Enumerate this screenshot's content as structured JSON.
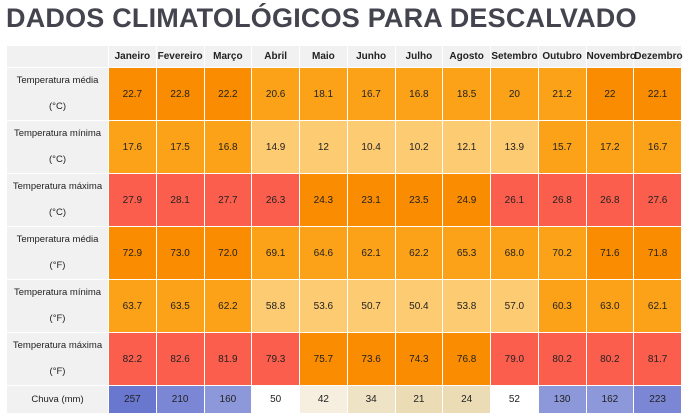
{
  "title": "DADOS CLIMATOLÓGICOS PARA DESCALVADO",
  "months": [
    "Janeiro",
    "Fevereiro",
    "Março",
    "Abril",
    "Maio",
    "Junho",
    "Julho",
    "Agosto",
    "Setembro",
    "Outubro",
    "Novembro",
    "Dezembro"
  ],
  "rows": [
    {
      "label_l1": "Temperatura média",
      "label_l2": "(°C)",
      "values": [
        "22.7",
        "22.8",
        "22.2",
        "20.6",
        "18.1",
        "16.7",
        "16.8",
        "18.5",
        "20",
        "21.2",
        "22",
        "22.1"
      ],
      "colors": [
        "#f98c00",
        "#f98c00",
        "#f98c00",
        "#fba219",
        "#fba219",
        "#fba219",
        "#fba219",
        "#fba219",
        "#fba219",
        "#fba219",
        "#f98c00",
        "#f98c00"
      ]
    },
    {
      "label_l1": "Temperatura mínima",
      "label_l2": "(°C)",
      "values": [
        "17.6",
        "17.5",
        "16.8",
        "14.9",
        "12",
        "10.4",
        "10.2",
        "12.1",
        "13.9",
        "15.7",
        "17.2",
        "16.7"
      ],
      "colors": [
        "#fba219",
        "#fba219",
        "#fba219",
        "#fdcb72",
        "#fdcb72",
        "#fdcb72",
        "#fdcb72",
        "#fdcb72",
        "#fdcb72",
        "#fba219",
        "#fba219",
        "#fba219"
      ]
    },
    {
      "label_l1": "Temperatura máxima",
      "label_l2": "(°C)",
      "values": [
        "27.9",
        "28.1",
        "27.7",
        "26.3",
        "24.3",
        "23.1",
        "23.5",
        "24.9",
        "26.1",
        "26.8",
        "26.8",
        "27.6"
      ],
      "colors": [
        "#fc5e4e",
        "#fc5e4e",
        "#fc5e4e",
        "#fc5e4e",
        "#f98c00",
        "#f98c00",
        "#f98c00",
        "#f98c00",
        "#fc5e4e",
        "#fc5e4e",
        "#fc5e4e",
        "#fc5e4e"
      ]
    },
    {
      "label_l1": "Temperatura média",
      "label_l2": "(°F)",
      "values": [
        "72.9",
        "73.0",
        "72.0",
        "69.1",
        "64.6",
        "62.1",
        "62.2",
        "65.3",
        "68.0",
        "70.2",
        "71.6",
        "71.8"
      ],
      "colors": [
        "#f98c00",
        "#f98c00",
        "#f98c00",
        "#fba219",
        "#fba219",
        "#fba219",
        "#fba219",
        "#fba219",
        "#fba219",
        "#fba219",
        "#f98c00",
        "#f98c00"
      ]
    },
    {
      "label_l1": "Temperatura mínima",
      "label_l2": "(°F)",
      "values": [
        "63.7",
        "63.5",
        "62.2",
        "58.8",
        "53.6",
        "50.7",
        "50.4",
        "53.8",
        "57.0",
        "60.3",
        "63.0",
        "62.1"
      ],
      "colors": [
        "#fba219",
        "#fba219",
        "#fba219",
        "#fdcb72",
        "#fdcb72",
        "#fdcb72",
        "#fdcb72",
        "#fdcb72",
        "#fdcb72",
        "#fba219",
        "#fba219",
        "#fba219"
      ]
    },
    {
      "label_l1": "Temperatura máxima",
      "label_l2": "(°F)",
      "values": [
        "82.2",
        "82.6",
        "81.9",
        "79.3",
        "75.7",
        "73.6",
        "74.3",
        "76.8",
        "79.0",
        "80.2",
        "80.2",
        "81.7"
      ],
      "colors": [
        "#fc5e4e",
        "#fc5e4e",
        "#fc5e4e",
        "#fc5e4e",
        "#f98c00",
        "#f98c00",
        "#f98c00",
        "#f98c00",
        "#fc5e4e",
        "#fc5e4e",
        "#fc5e4e",
        "#fc5e4e"
      ]
    }
  ],
  "rain": {
    "label": "Chuva (mm)",
    "values": [
      "257",
      "210",
      "160",
      "50",
      "42",
      "34",
      "21",
      "24",
      "52",
      "130",
      "162",
      "223"
    ],
    "colors": [
      "#6a77cf",
      "#7b87d5",
      "#8d98da",
      "#ffffff",
      "#f6efdf",
      "#efe3c6",
      "#ebdcb6",
      "#ebdcb6",
      "#ffffff",
      "#8d98da",
      "#8d98da",
      "#7b87d5"
    ]
  }
}
